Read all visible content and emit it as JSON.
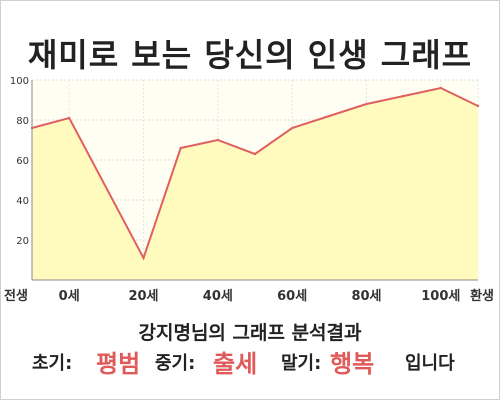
{
  "title": "재미로 보는 당신의 인생 그래프",
  "subtitle": "강지명님의 그래프 분석결과",
  "summary": {
    "early_label": "초기:",
    "early_value": "평범",
    "mid_label": "중기:",
    "mid_value": "출세",
    "late_label": "말기:",
    "late_value": "행복",
    "suffix": "입니다"
  },
  "colors": {
    "line": "#e06060",
    "fill": "#fffbbf",
    "plot_bg": "#fffef2",
    "accent": "#e05a5a"
  },
  "chart_data": {
    "type": "area",
    "title": "재미로 보는 당신의 인생 그래프",
    "xlabel": "",
    "ylabel": "",
    "ylim": [
      0,
      100
    ],
    "yticks": [
      20,
      40,
      60,
      80,
      100
    ],
    "xticks": [
      {
        "label": "전생",
        "x": -10
      },
      {
        "label": "0세",
        "x": 0
      },
      {
        "label": "20세",
        "x": 20
      },
      {
        "label": "40세",
        "x": 40
      },
      {
        "label": "60세",
        "x": 60
      },
      {
        "label": "80세",
        "x": 80
      },
      {
        "label": "100세",
        "x": 100
      },
      {
        "label": "환생",
        "x": 110
      }
    ],
    "xlim": [
      -10,
      110
    ],
    "grid": true,
    "series": [
      {
        "x": [
          -10,
          0,
          20,
          30,
          40,
          50,
          60,
          70,
          80,
          90,
          100,
          110
        ],
        "values": [
          76,
          81,
          11,
          66,
          70,
          63,
          76,
          82,
          88,
          92,
          96,
          87
        ]
      }
    ]
  }
}
